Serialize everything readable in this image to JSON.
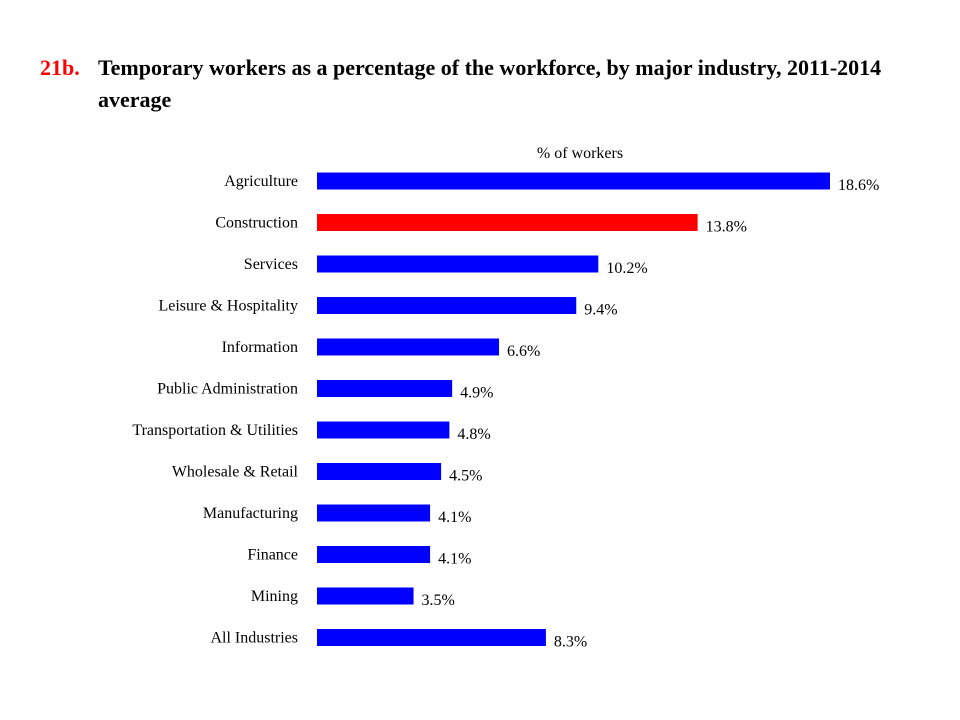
{
  "title": {
    "number": "21b.",
    "text": "Temporary workers as a percentage of the workforce, by major industry, 2011-2014 average"
  },
  "chart_data": {
    "type": "bar",
    "orientation": "horizontal",
    "xlabel": "% of workers",
    "categories": [
      "Agriculture",
      "Construction",
      "Services",
      "Leisure & Hospitality",
      "Information",
      "Public Administration",
      "Transportation & Utilities",
      "Wholesale & Retail",
      "Manufacturing",
      "Finance",
      "Mining",
      "All Industries"
    ],
    "values": [
      18.6,
      13.8,
      10.2,
      9.4,
      6.6,
      4.9,
      4.8,
      4.5,
      4.1,
      4.1,
      3.5,
      8.3
    ],
    "value_labels": [
      "18.6%",
      "13.8%",
      "10.2%",
      "9.4%",
      "6.6%",
      "4.9%",
      "4.8%",
      "4.5%",
      "4.1%",
      "4.1%",
      "3.5%",
      "8.3%"
    ],
    "colors": [
      "#0000ff",
      "#ff0000",
      "#0000ff",
      "#0000ff",
      "#0000ff",
      "#0000ff",
      "#0000ff",
      "#0000ff",
      "#0000ff",
      "#0000ff",
      "#0000ff",
      "#0000ff"
    ],
    "xlim": [
      0,
      18.6
    ],
    "grid": false,
    "legend": "none"
  }
}
